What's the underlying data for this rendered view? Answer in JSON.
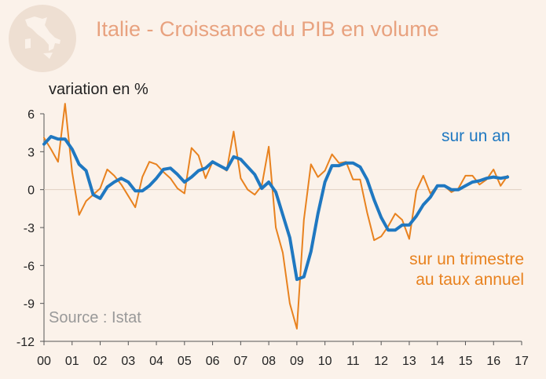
{
  "title": "Italie - Croissance du PIB en volume",
  "icon": "italy-map-icon",
  "colors": {
    "title": "#e8a27f",
    "annual": "#1f78c1",
    "quarterly": "#e8821f",
    "background": "#fbf2ea",
    "grid": "#e0cfc2",
    "axis": "#555555",
    "badge": "#eedfd2"
  },
  "chart_data": {
    "type": "line",
    "title": "Italie - Croissance du PIB en volume",
    "ylabel": "variation en %",
    "xlabel": "",
    "ylim": [
      -12,
      6
    ],
    "xlim": [
      2000,
      2017
    ],
    "yticks": [
      6,
      3,
      0,
      -3,
      -6,
      -9,
      -12
    ],
    "xticks": [
      2000,
      2001,
      2002,
      2003,
      2004,
      2005,
      2006,
      2007,
      2008,
      2009,
      2010,
      2011,
      2012,
      2013,
      2014,
      2015,
      2016,
      2017
    ],
    "xtick_labels": [
      "00",
      "01",
      "02",
      "03",
      "04",
      "05",
      "06",
      "07",
      "08",
      "09",
      "10",
      "11",
      "12",
      "13",
      "14",
      "15",
      "16",
      "17"
    ],
    "grid": false,
    "source": "Source : Istat",
    "series": [
      {
        "name": "sur un an",
        "annotation": "sur un an",
        "color": "#1f78c1",
        "start": 2000,
        "step": 0.25,
        "values": [
          3.6,
          4.2,
          4.0,
          4.0,
          3.2,
          2.0,
          1.5,
          -0.4,
          -0.7,
          0.2,
          0.6,
          0.9,
          0.6,
          -0.1,
          -0.1,
          0.3,
          0.9,
          1.6,
          1.7,
          1.2,
          0.6,
          1.0,
          1.5,
          1.7,
          2.2,
          1.9,
          1.6,
          2.6,
          2.4,
          1.8,
          1.2,
          0.1,
          0.6,
          -0.2,
          -2.0,
          -3.8,
          -7.1,
          -6.9,
          -4.9,
          -1.9,
          0.6,
          1.9,
          1.9,
          2.1,
          2.1,
          1.8,
          0.8,
          -0.8,
          -2.2,
          -3.2,
          -3.2,
          -2.8,
          -2.8,
          -2.1,
          -1.2,
          -0.6,
          0.3,
          0.3,
          0.0,
          0.0,
          0.3,
          0.6,
          0.7,
          0.9,
          1.0,
          0.9,
          1.0
        ]
      },
      {
        "name": "sur un trimestre au taux annuel",
        "annotation": [
          "sur un trimestre",
          "au taux annuel"
        ],
        "color": "#e8821f",
        "start": 2000,
        "step": 0.25,
        "values": [
          4.1,
          3.2,
          2.2,
          6.8,
          1.4,
          -2.0,
          -0.9,
          -0.4,
          0.1,
          1.6,
          1.1,
          0.4,
          -0.5,
          -1.4,
          1.0,
          2.2,
          2.0,
          1.4,
          0.9,
          0.1,
          -0.3,
          3.3,
          2.7,
          0.9,
          2.2,
          1.9,
          1.5,
          4.6,
          0.9,
          0.0,
          -0.4,
          0.3,
          3.4,
          -3.0,
          -5.0,
          -9.0,
          -11.0,
          -2.4,
          2.0,
          1.0,
          1.5,
          2.8,
          2.1,
          2.2,
          0.8,
          0.8,
          -1.8,
          -4.0,
          -3.7,
          -2.9,
          -1.9,
          -2.4,
          -3.9,
          -0.1,
          1.1,
          -0.3,
          0.3,
          0.3,
          -0.2,
          0.1,
          1.1,
          1.1,
          0.4,
          0.8,
          1.6,
          0.3,
          1.1
        ]
      }
    ]
  }
}
